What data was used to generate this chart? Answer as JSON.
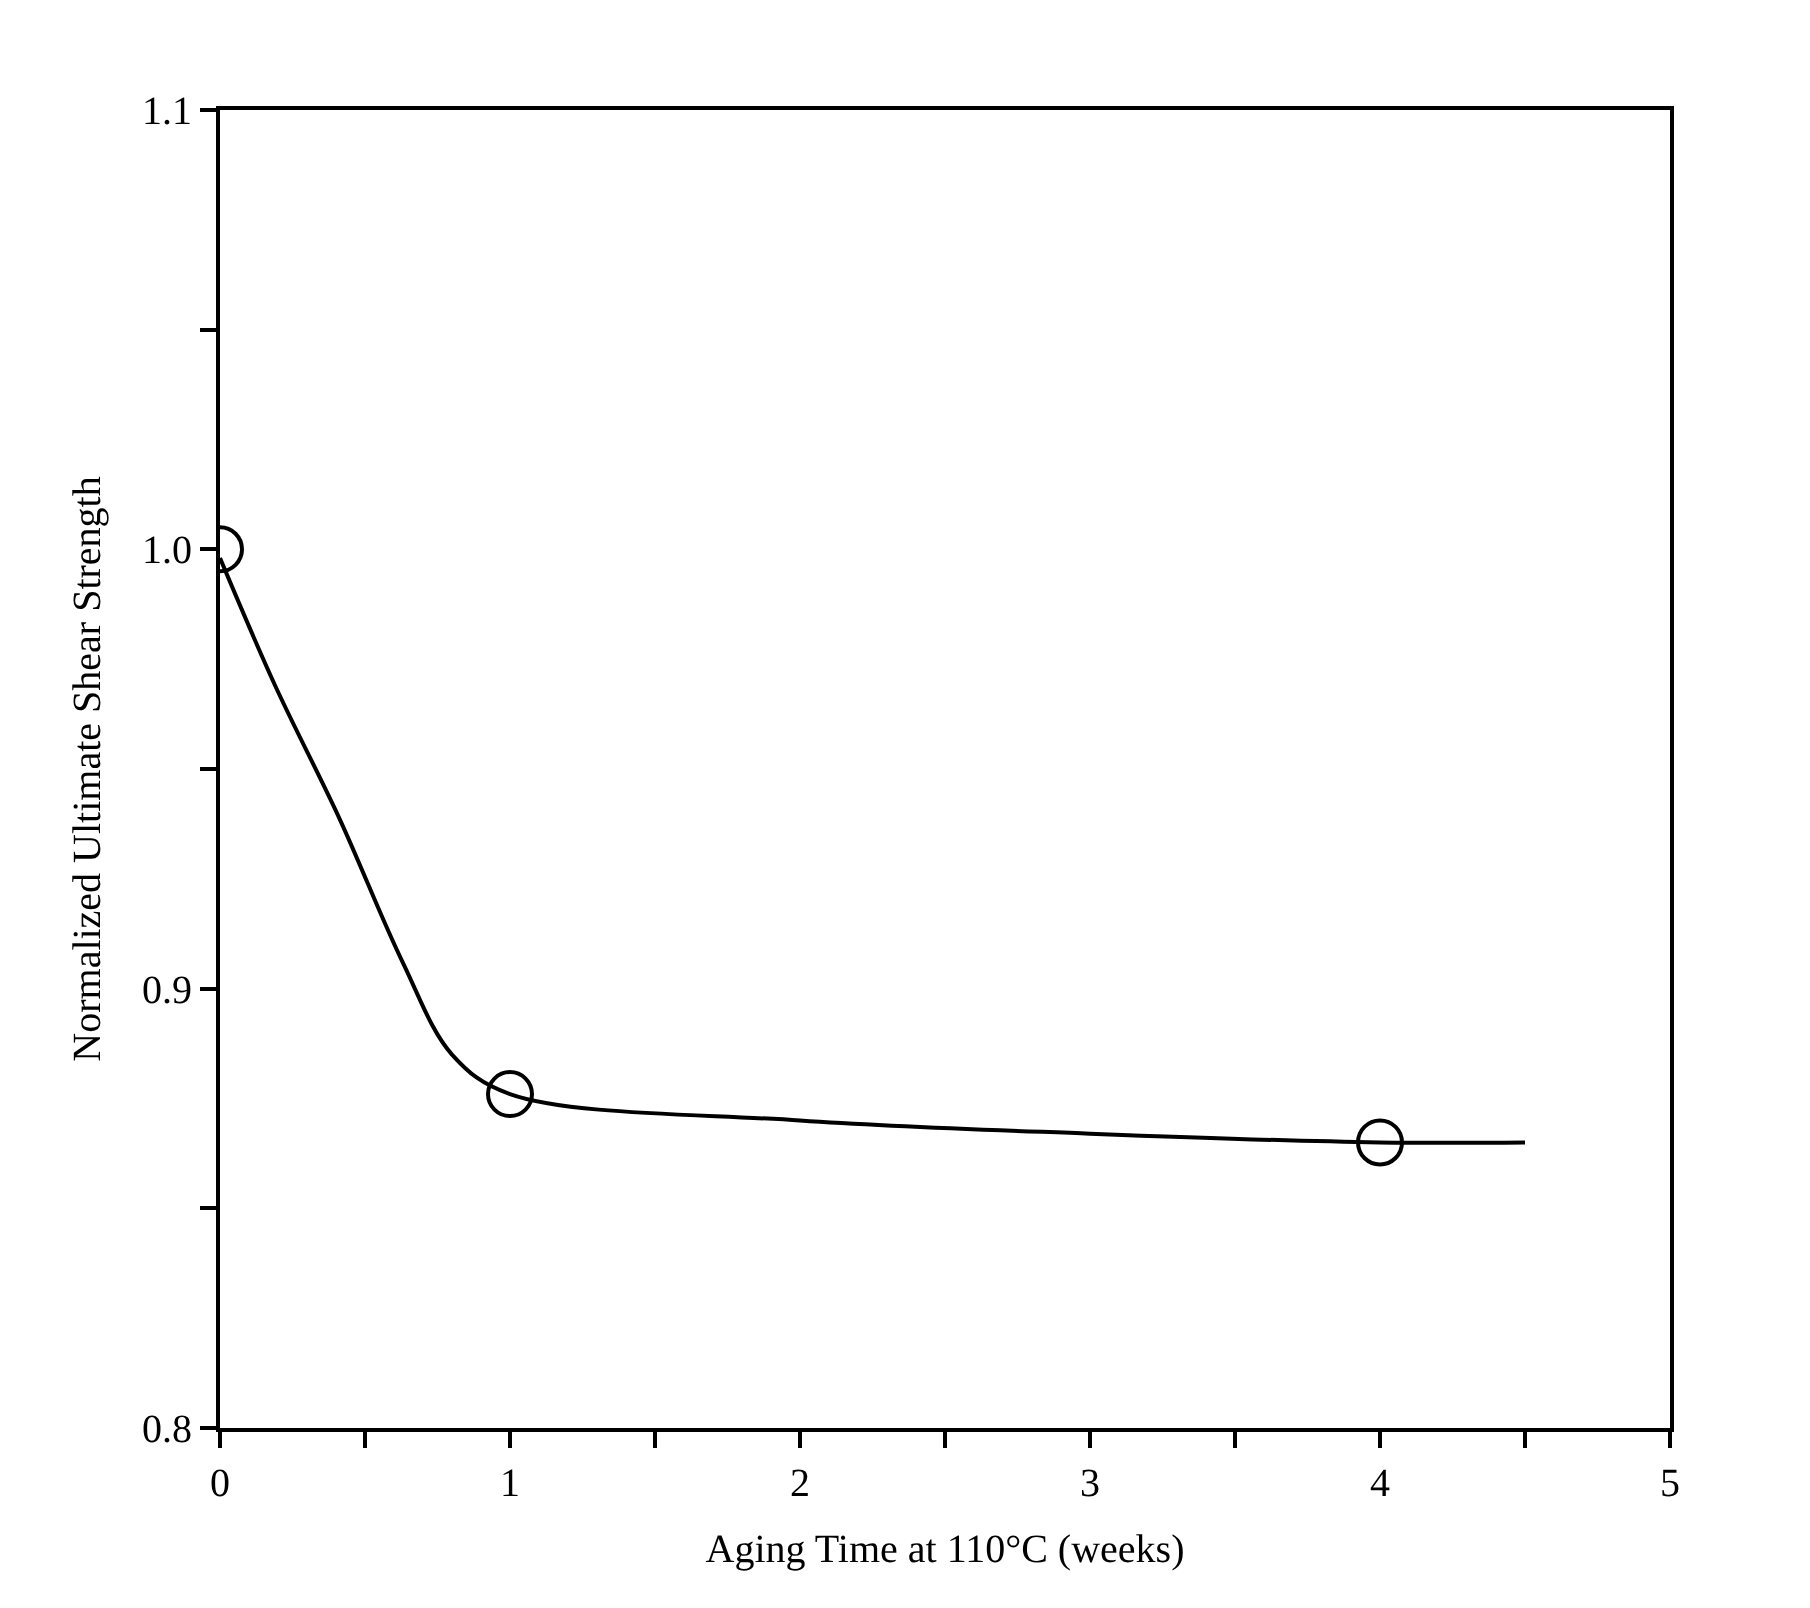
{
  "chart_data": {
    "type": "scatter",
    "xlabel": "Aging Time at 110°C (weeks)",
    "ylabel": "Normalized Ultimate Shear Strength",
    "xlim": [
      0,
      5
    ],
    "ylim": [
      0.8,
      1.1
    ],
    "xticks": [
      0,
      {
        "value": 0.5,
        "label": null
      },
      1,
      {
        "value": 1.5,
        "label": null
      },
      2,
      {
        "value": 2.5,
        "label": null
      },
      3,
      {
        "value": 3.5,
        "label": null
      },
      4,
      {
        "value": 4.5,
        "label": null
      },
      5
    ],
    "yticks": [
      {
        "value": 0.8,
        "label": "0.8"
      },
      {
        "value": 0.85,
        "label": null
      },
      {
        "value": 0.9,
        "label": "0.9"
      },
      {
        "value": 0.95,
        "label": null
      },
      {
        "value": 1.0,
        "label": "1.0"
      },
      {
        "value": 1.05,
        "label": null
      },
      {
        "value": 1.1,
        "label": "1.1"
      }
    ],
    "series": [
      {
        "type": "line",
        "color": "#000000",
        "marker": "none",
        "line_style": "solid",
        "x": [
          0,
          0.19,
          0.41,
          0.63,
          0.8,
          1,
          2,
          3,
          4,
          4.5
        ],
        "values": [
          0.998,
          0.969,
          0.939,
          0.906,
          0.885,
          0.876,
          0.87,
          0.867,
          0.865,
          0.865
        ]
      },
      {
        "color": "#000000",
        "marker": "circle",
        "x": [
          0,
          1,
          4
        ],
        "values": [
          1.0,
          0.876,
          0.865
        ]
      }
    ]
  }
}
